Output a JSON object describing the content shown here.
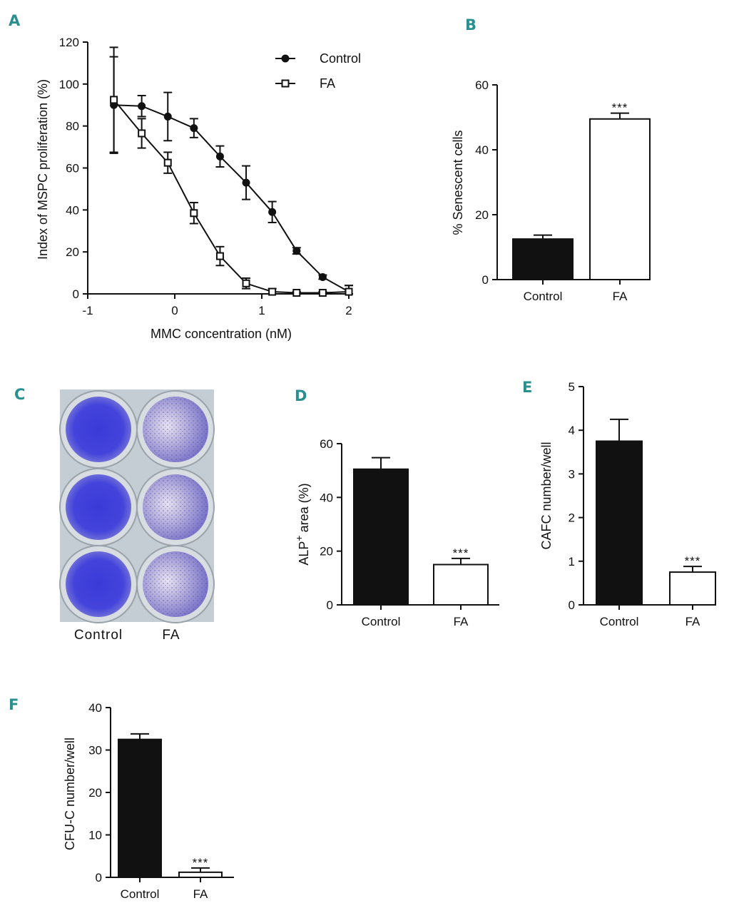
{
  "panels": {
    "A": {
      "letter": "A"
    },
    "B": {
      "letter": "B"
    },
    "C": {
      "letter": "C",
      "labels": [
        "Control",
        "FA"
      ]
    },
    "D": {
      "letter": "D"
    },
    "E": {
      "letter": "E"
    },
    "F": {
      "letter": "F"
    }
  },
  "colors": {
    "panel_letter": "#2a8f8f",
    "bar_control": "#111111",
    "bar_fa": "#ffffff",
    "stain": "#4a4ae0"
  },
  "chart_data": [
    {
      "id": "A",
      "type": "line",
      "title": "",
      "xlabel": "MMC concentration (nM)",
      "ylabel": "Index of MSPC proliferation (%)",
      "xlim": [
        -1,
        2
      ],
      "ylim": [
        0,
        120
      ],
      "xticks": [
        -1,
        0,
        1,
        2
      ],
      "yticks": [
        0,
        20,
        40,
        60,
        80,
        100,
        120
      ],
      "legend": "top-right",
      "series": [
        {
          "name": "Control",
          "marker": "filled-circle",
          "x": [
            -0.7,
            -0.38,
            -0.08,
            0.22,
            0.52,
            0.82,
            1.12,
            1.4,
            1.7,
            2.0
          ],
          "y": [
            90,
            89.5,
            84.5,
            79,
            65.5,
            53,
            39,
            20.5,
            8,
            1
          ],
          "err": [
            23,
            5,
            11.5,
            4.5,
            5,
            8,
            5,
            1.5,
            1,
            3
          ]
        },
        {
          "name": "FA",
          "marker": "open-square",
          "x": [
            -0.7,
            -0.38,
            -0.08,
            0.22,
            0.52,
            0.82,
            1.12,
            1.4,
            1.7,
            2.0
          ],
          "y": [
            92.5,
            76.5,
            62.5,
            38.5,
            18,
            5,
            1,
            0.5,
            0.5,
            1
          ],
          "err": [
            25,
            7,
            5,
            5,
            4.5,
            2.5,
            1.5,
            0.5,
            0.5,
            3
          ]
        }
      ]
    },
    {
      "id": "B",
      "type": "bar",
      "categories": [
        "Control",
        "FA"
      ],
      "values": [
        12.5,
        49.5
      ],
      "errors": [
        1.2,
        1.8
      ],
      "ylabel": "% Senescent cells",
      "ylim": [
        0,
        60
      ],
      "yticks": [
        0,
        20,
        40,
        60
      ],
      "significance": [
        "",
        "***"
      ]
    },
    {
      "id": "D",
      "type": "bar",
      "categories": [
        "Control",
        "FA"
      ],
      "values": [
        50.5,
        15
      ],
      "errors": [
        4.3,
        2.3
      ],
      "ylabel_main": "ALP",
      "ylabel_sup": "+",
      "ylabel_rest": "area (%)",
      "ylim": [
        0,
        60
      ],
      "yticks": [
        0,
        20,
        40,
        60
      ],
      "significance": [
        "",
        "***"
      ]
    },
    {
      "id": "E",
      "type": "bar",
      "categories": [
        "Control",
        "FA"
      ],
      "values": [
        3.75,
        0.75
      ],
      "errors": [
        0.5,
        0.13
      ],
      "ylabel": "CAFC  number/well",
      "ylim": [
        0,
        5
      ],
      "yticks": [
        0,
        1,
        2,
        3,
        4,
        5
      ],
      "significance": [
        "",
        "***"
      ]
    },
    {
      "id": "F",
      "type": "bar",
      "categories": [
        "Control",
        "FA"
      ],
      "values": [
        32.5,
        1.2
      ],
      "errors": [
        1.3,
        1.0
      ],
      "ylabel": "CFU-C number/well",
      "ylim": [
        0,
        40
      ],
      "yticks": [
        0,
        10,
        20,
        30,
        40
      ],
      "significance": [
        "",
        "***"
      ]
    }
  ]
}
